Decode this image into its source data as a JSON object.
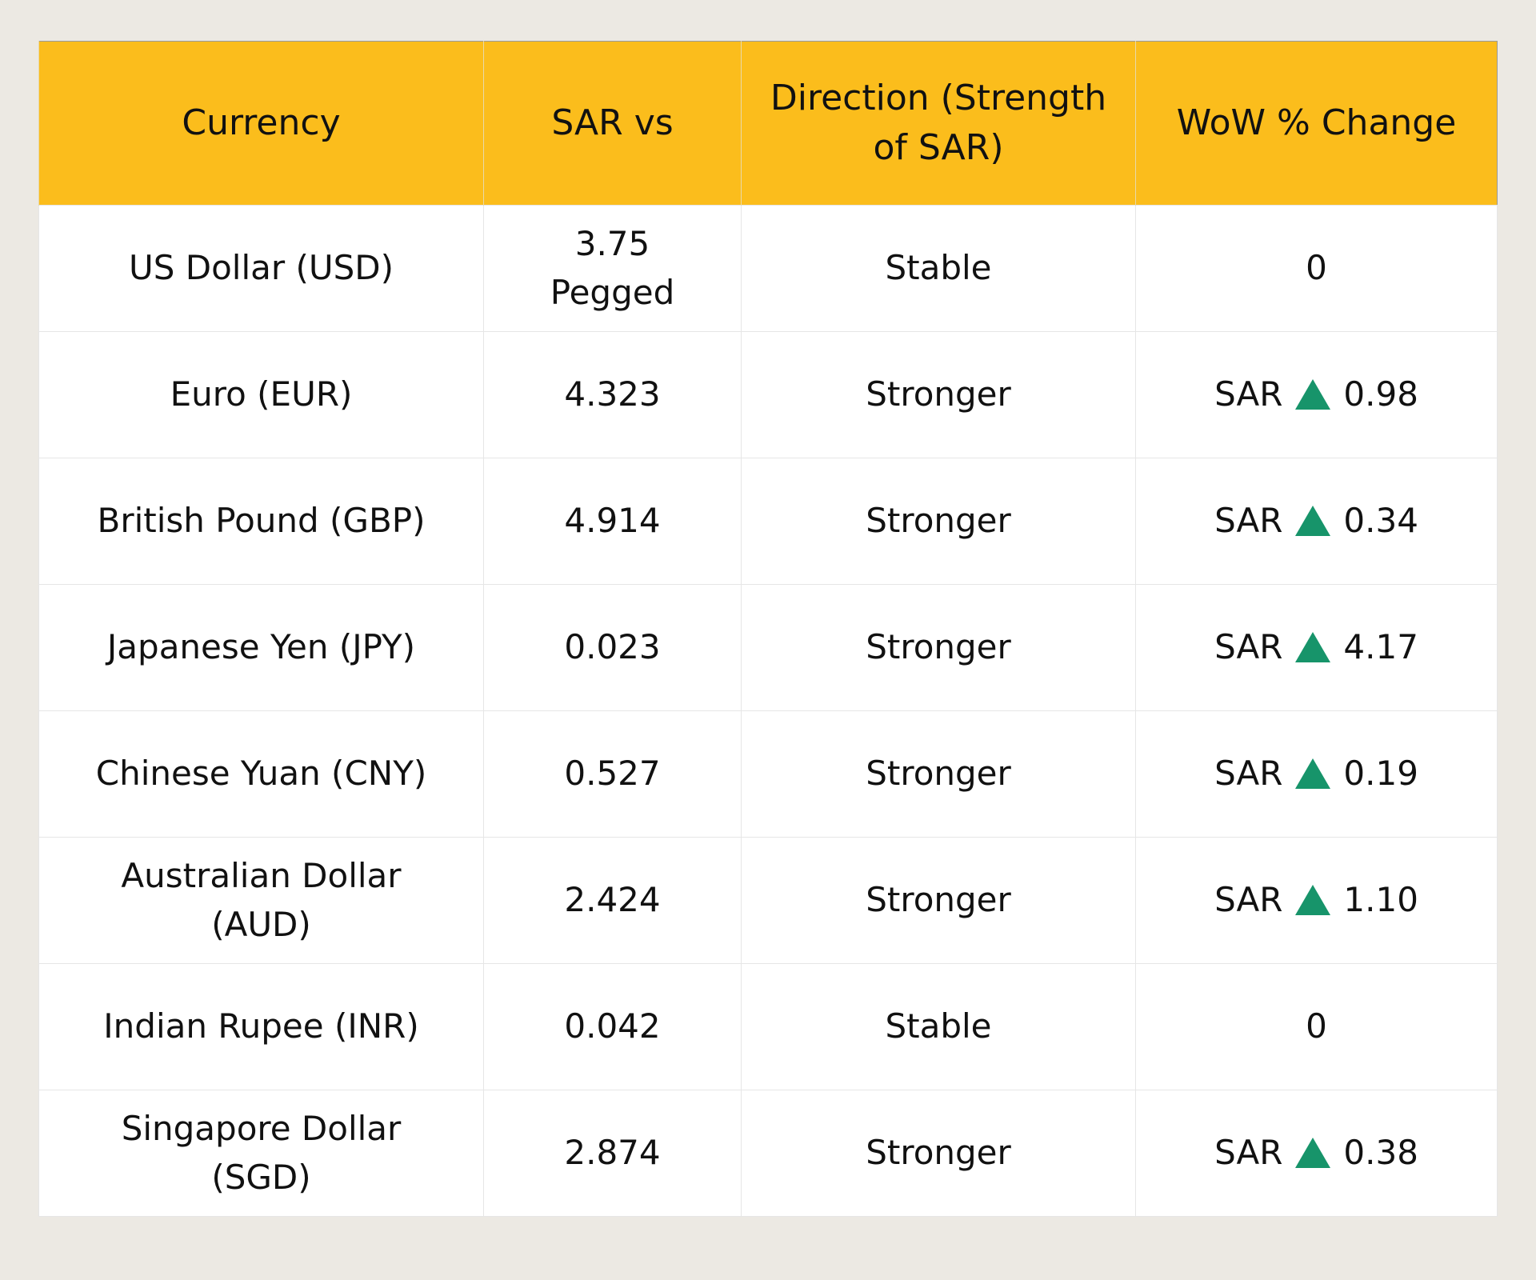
{
  "table": {
    "header": [
      "Currency",
      "SAR vs",
      "Direction (Strength of SAR)",
      "WoW % Change"
    ],
    "rows": [
      {
        "currency": "US Dollar (USD)",
        "rate": "3.75 Pegged",
        "direction": "Stable",
        "change": "0"
      },
      {
        "currency": "Euro (EUR)",
        "rate": "4.323",
        "direction": "Stronger",
        "change_prefix": "SAR",
        "change": "0.98"
      },
      {
        "currency": "British Pound (GBP)",
        "rate": "4.914",
        "direction": "Stronger",
        "change_prefix": "SAR",
        "change": "0.34"
      },
      {
        "currency": "Japanese Yen (JPY)",
        "rate": "0.023",
        "direction": "Stronger",
        "change_prefix": "SAR",
        "change": "4.17"
      },
      {
        "currency": "Chinese Yuan (CNY)",
        "rate": "0.527",
        "direction": "Stronger",
        "change_prefix": "SAR",
        "change": "0.19"
      },
      {
        "currency": "Australian Dollar (AUD)",
        "rate": "2.424",
        "direction": "Stronger",
        "change_prefix": "SAR",
        "change": "1.10"
      },
      {
        "currency": "Indian Rupee (INR)",
        "rate": "0.042",
        "direction": "Stable",
        "change": "0"
      },
      {
        "currency": "Singapore Dollar (SGD)",
        "rate": "2.874",
        "direction": "Stronger",
        "change_prefix": "SAR",
        "change": "0.38"
      }
    ]
  }
}
